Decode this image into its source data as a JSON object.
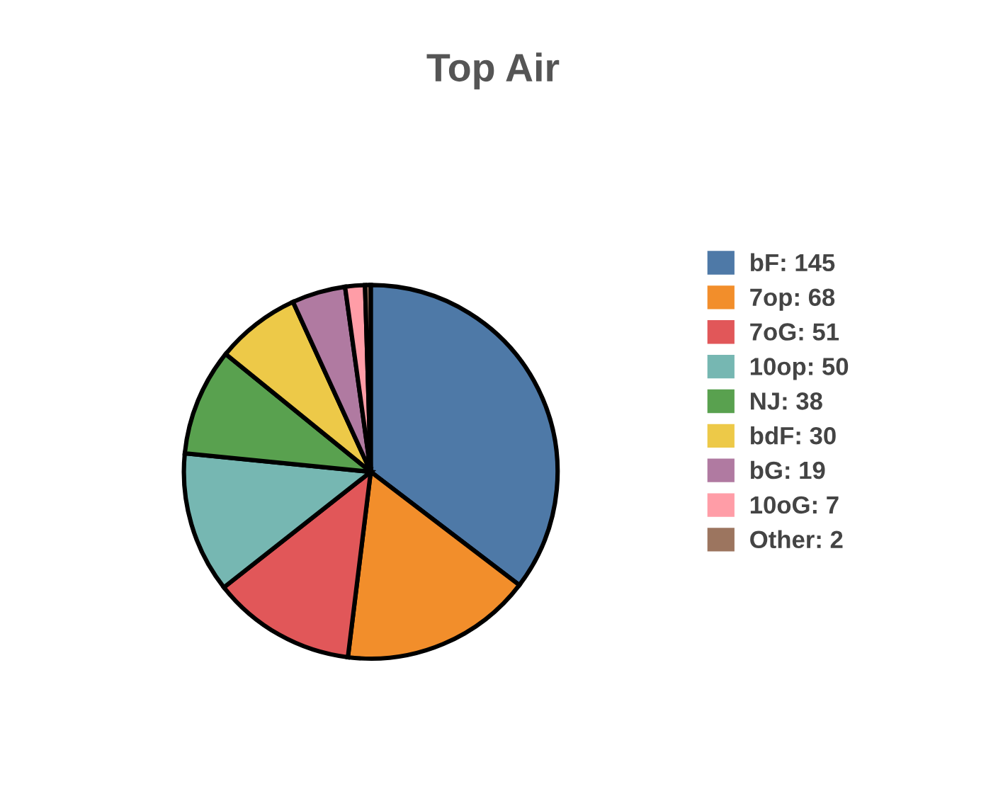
{
  "chart_data": {
    "type": "pie",
    "title": "Top Air",
    "categories": [
      "bF: 145",
      "7op: 68",
      "7oG: 51",
      "10op: 50",
      "NJ: 38",
      "bdF: 30",
      "bG: 19",
      "10oG: 7",
      "Other: 2"
    ],
    "values": [
      145,
      68,
      51,
      50,
      38,
      30,
      19,
      7,
      2
    ],
    "colors": [
      "#4e79a7",
      "#f28e2b",
      "#e15759",
      "#76b7b2",
      "#59a14f",
      "#edc948",
      "#b07aa1",
      "#ff9da7",
      "#9c755f"
    ],
    "legend": "right"
  }
}
